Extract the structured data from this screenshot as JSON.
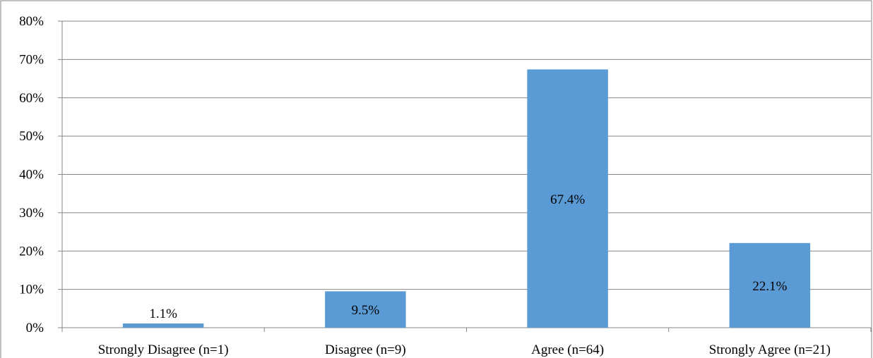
{
  "chart_data": {
    "type": "bar",
    "title": "",
    "xlabel": "",
    "ylabel": "",
    "categories": [
      "Strongly Disagree (n=1)",
      "Disagree (n=9)",
      "Agree (n=64)",
      "Strongly Agree (n=21)"
    ],
    "values": [
      1.1,
      9.5,
      67.4,
      22.1
    ],
    "data_labels": [
      "1.1%",
      "9.5%",
      "67.4%",
      "22.1%"
    ],
    "ylim": [
      0,
      80
    ],
    "yticks": [
      0,
      10,
      20,
      30,
      40,
      50,
      60,
      70,
      80
    ],
    "ytick_labels": [
      "0%",
      "10%",
      "20%",
      "30%",
      "40%",
      "50%",
      "60%",
      "70%",
      "80%"
    ],
    "grid": true,
    "legend": false,
    "colors": {
      "bar": "#5b9bd5",
      "gridline": "#868686",
      "axis": "#868686",
      "text": "#000000",
      "frame": "#868686"
    }
  }
}
